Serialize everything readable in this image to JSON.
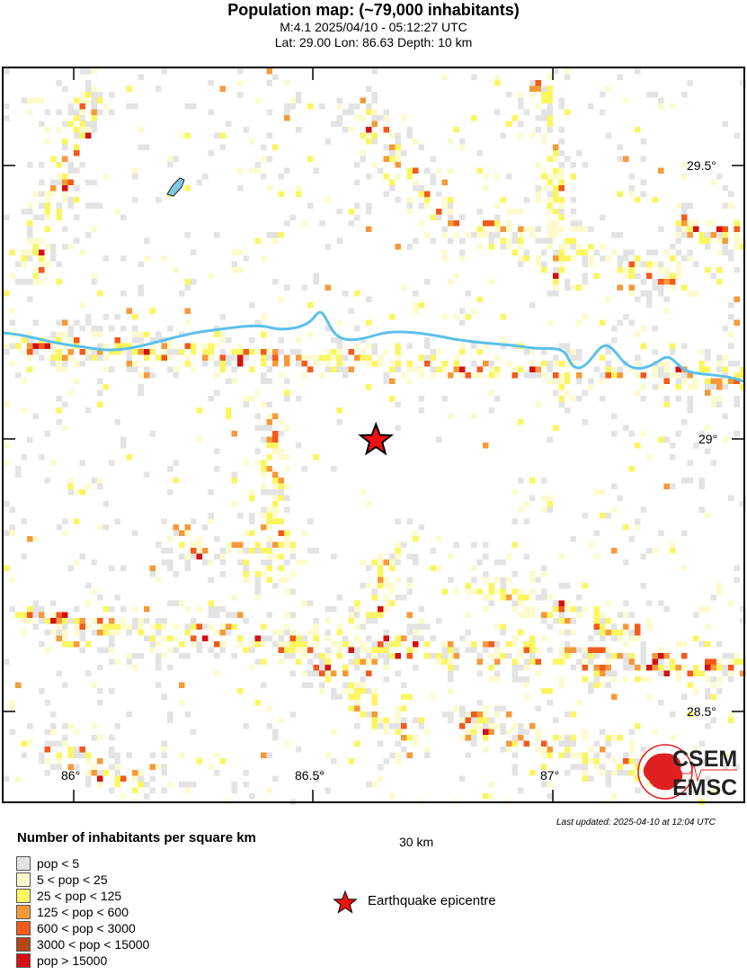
{
  "header": {
    "title": "Population map: (~79,000 inhabitants)",
    "event": "M:4.1 2025/04/10 - 05:12:27 UTC",
    "location": "Lat: 29.00 Lon: 86.63 Depth: 10 km"
  },
  "map": {
    "lon_range": [
      85.85,
      87.4
    ],
    "lat_range": [
      28.34,
      29.68
    ],
    "lon_ticks": [
      "86°",
      "86.5°",
      "87°"
    ],
    "lat_ticks": [
      "29.5°",
      "29°",
      "28.5°"
    ],
    "epicentre": {
      "lat": 29.0,
      "lon": 86.63
    },
    "river_color": "#5bc0eb",
    "logo_text": [
      "CSEM",
      "EMSC"
    ],
    "logo_color": "#e02020"
  },
  "scale": {
    "label": "30 km"
  },
  "last_updated": "Last updated: 2025-04-10 at 12:04 UTC",
  "legend": {
    "title": "Number of inhabitants per square km",
    "items": [
      {
        "label": "pop < 5",
        "color": "#e3e3e3"
      },
      {
        "label": "5 < pop < 25",
        "color": "#fdfbcd"
      },
      {
        "label": "25 < pop < 125",
        "color": "#fbf65f"
      },
      {
        "label": "125 < pop < 600",
        "color": "#f6993a"
      },
      {
        "label": "600 < pop < 3000",
        "color": "#f35a1c"
      },
      {
        "label": "3000 < pop < 15000",
        "color": "#b5461a"
      },
      {
        "label": "pop > 15000",
        "color": "#d41010"
      }
    ],
    "epicentre_label": "Earthquake epicentre",
    "epicentre_color": "#ee1111"
  }
}
